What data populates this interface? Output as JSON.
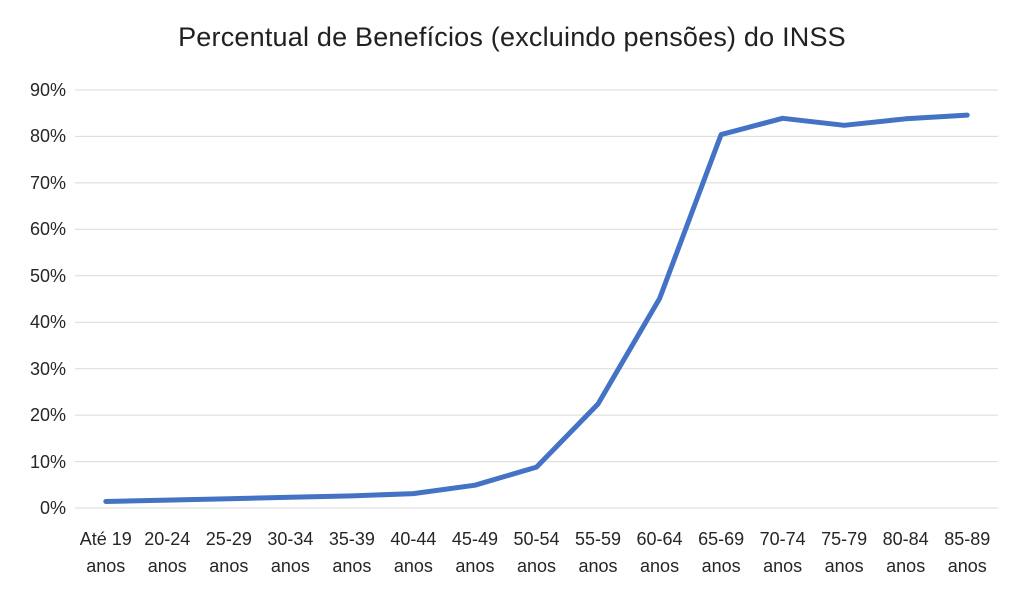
{
  "chart_data": {
    "type": "line",
    "title": "Percentual de Benefícios (excluindo pensões) do INSS",
    "categories": [
      "Até 19 anos",
      "20-24 anos",
      "25-29 anos",
      "30-34 anos",
      "35-39 anos",
      "40-44 anos",
      "45-49 anos",
      "50-54 anos",
      "55-59 anos",
      "60-64 anos",
      "65-69 anos",
      "70-74 anos",
      "75-79 anos",
      "80-84 anos",
      "85-89 anos"
    ],
    "values": [
      1.4,
      1.7,
      2.0,
      2.3,
      2.6,
      3.1,
      4.9,
      8.8,
      22.4,
      45.1,
      80.4,
      83.9,
      82.4,
      83.8,
      84.6
    ],
    "xlabel": "",
    "ylabel": "",
    "ylim": [
      0,
      90
    ],
    "y_tick_step": 10,
    "y_tick_labels": [
      "0%",
      "10%",
      "20%",
      "30%",
      "40%",
      "50%",
      "60%",
      "70%",
      "80%",
      "90%"
    ],
    "grid": "horizontal",
    "legend_position": "none",
    "line_color": "#4472C4",
    "gridline_color": "#D9D9D9",
    "text_color": "#262626",
    "background_color": "#FFFFFF"
  }
}
